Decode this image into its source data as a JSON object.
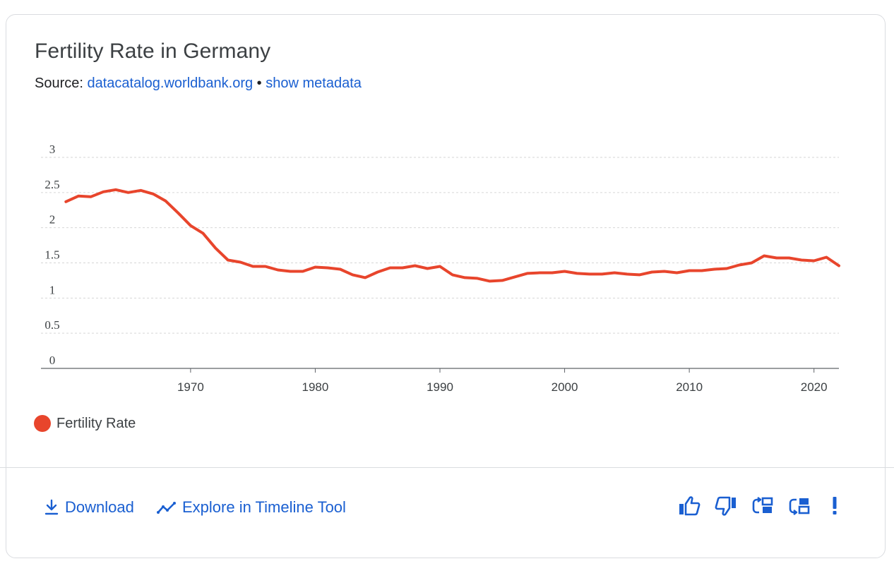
{
  "title": "Fertility Rate in Germany",
  "source": {
    "label": "Source:",
    "link": "datacatalog.worldbank.org",
    "separator": "•",
    "metadata": "show metadata"
  },
  "legend": {
    "label": "Fertility Rate"
  },
  "footer": {
    "download": "Download",
    "explore": "Explore in Timeline Tool"
  },
  "colors": {
    "series": "#e8452c",
    "link": "#1a5fd1"
  },
  "chart_data": {
    "type": "line",
    "title": "Fertility Rate in Germany",
    "xlabel": "",
    "ylabel": "",
    "x": [
      1960,
      1961,
      1962,
      1963,
      1964,
      1965,
      1966,
      1967,
      1968,
      1969,
      1970,
      1971,
      1972,
      1973,
      1974,
      1975,
      1976,
      1977,
      1978,
      1979,
      1980,
      1981,
      1982,
      1983,
      1984,
      1985,
      1986,
      1987,
      1988,
      1989,
      1990,
      1991,
      1992,
      1993,
      1994,
      1995,
      1996,
      1997,
      1998,
      1999,
      2000,
      2001,
      2002,
      2003,
      2004,
      2005,
      2006,
      2007,
      2008,
      2009,
      2010,
      2011,
      2012,
      2013,
      2014,
      2015,
      2016,
      2017,
      2018,
      2019,
      2020,
      2021,
      2022
    ],
    "series": [
      {
        "name": "Fertility Rate",
        "values": [
          2.37,
          2.45,
          2.44,
          2.51,
          2.54,
          2.5,
          2.53,
          2.48,
          2.38,
          2.21,
          2.03,
          1.92,
          1.71,
          1.54,
          1.51,
          1.45,
          1.45,
          1.4,
          1.38,
          1.38,
          1.44,
          1.43,
          1.41,
          1.33,
          1.29,
          1.37,
          1.43,
          1.43,
          1.46,
          1.42,
          1.45,
          1.33,
          1.29,
          1.28,
          1.24,
          1.25,
          1.3,
          1.35,
          1.36,
          1.36,
          1.38,
          1.35,
          1.34,
          1.34,
          1.36,
          1.34,
          1.33,
          1.37,
          1.38,
          1.36,
          1.39,
          1.39,
          1.41,
          1.42,
          1.47,
          1.5,
          1.6,
          1.57,
          1.57,
          1.54,
          1.53,
          1.58,
          1.46
        ]
      }
    ],
    "xlim": [
      1960,
      2022
    ],
    "ylim": [
      0,
      3
    ],
    "yticks": [
      "0",
      "0.5",
      "1",
      "1.5",
      "2",
      "2.5",
      "3"
    ],
    "ytick_values": [
      0,
      0.5,
      1,
      1.5,
      2,
      2.5,
      3
    ],
    "xticks": [
      "1970",
      "1980",
      "1990",
      "2000",
      "2010",
      "2020"
    ],
    "xtick_values": [
      1970,
      1980,
      1990,
      2000,
      2010,
      2020
    ],
    "grid": true,
    "legend": "bottom-left"
  }
}
